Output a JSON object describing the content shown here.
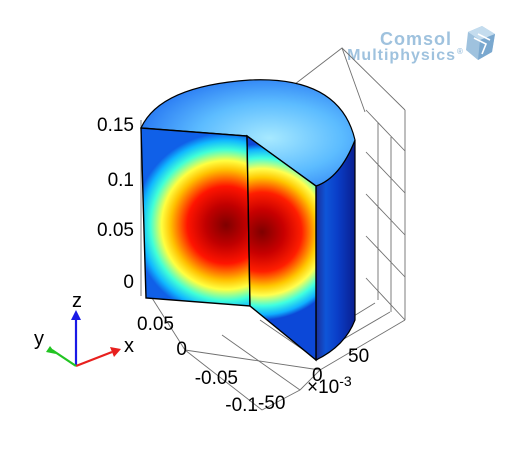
{
  "logo": {
    "line1": "Comsol",
    "line2": "Multiphysics",
    "trademark": "®",
    "color": "#9fc2de"
  },
  "z_axis": {
    "ticks": [
      "0.15",
      "0.1",
      "0.05",
      "0"
    ]
  },
  "x_axis": {
    "ticks": [
      "0.05",
      "0",
      "-0.05",
      "-0.1"
    ]
  },
  "y_axis": {
    "ticks": [
      "50",
      "0",
      "-50"
    ],
    "multiplier": "×10",
    "exponent": "-3"
  },
  "triad": {
    "x": "x",
    "y": "y",
    "z": "z",
    "colors": {
      "x": "#e8201e",
      "y": "#22c422",
      "z": "#1a1ae6"
    }
  },
  "colormap": [
    "#00007f",
    "#0000ff",
    "#00ffff",
    "#ffff00",
    "#ff0000",
    "#7f0000"
  ]
}
